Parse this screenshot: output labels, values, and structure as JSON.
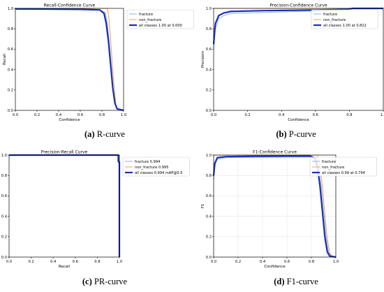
{
  "chart_data": [
    {
      "type": "line",
      "title": "Recall-Confidence Curve",
      "xlabel": "Confidence",
      "ylabel": "Recall",
      "xlim": [
        0,
        1
      ],
      "ylim": [
        0,
        1
      ],
      "xticks": [
        "0.0",
        "0.2",
        "0.4",
        "0.6",
        "0.8",
        "1.0"
      ],
      "yticks": [
        "0.0",
        "0.2",
        "0.4",
        "0.6",
        "0.8",
        "1.0"
      ],
      "grid": false,
      "legend_position": "top-right",
      "caption_letter": "(a)",
      "caption_text": "R-curve",
      "series": [
        {
          "name": "fracture",
          "color": "#8fb3e0",
          "width": 1,
          "points": [
            [
              0,
              0.99
            ],
            [
              0.3,
              0.99
            ],
            [
              0.6,
              0.988
            ],
            [
              0.78,
              0.985
            ],
            [
              0.83,
              0.96
            ],
            [
              0.85,
              0.85
            ],
            [
              0.87,
              0.65
            ],
            [
              0.89,
              0.4
            ],
            [
              0.91,
              0.15
            ],
            [
              0.93,
              0.03
            ],
            [
              0.95,
              0.01
            ],
            [
              1,
              0
            ]
          ]
        },
        {
          "name": "non_fracture",
          "color": "#f0a04b",
          "width": 1,
          "points": [
            [
              0,
              1
            ],
            [
              0.85,
              1
            ],
            [
              0.865,
              0.9
            ],
            [
              0.88,
              0.7
            ],
            [
              0.9,
              0.4
            ],
            [
              0.915,
              0.2
            ],
            [
              0.93,
              0.05
            ],
            [
              0.95,
              0.01
            ],
            [
              1,
              0
            ]
          ]
        },
        {
          "name": "all classes 1.00 at 0.000",
          "color": "#1a2fb8",
          "width": 2.2,
          "points": [
            [
              0,
              0.995
            ],
            [
              0.3,
              0.993
            ],
            [
              0.6,
              0.99
            ],
            [
              0.78,
              0.985
            ],
            [
              0.82,
              0.95
            ],
            [
              0.84,
              0.85
            ],
            [
              0.86,
              0.68
            ],
            [
              0.88,
              0.45
            ],
            [
              0.9,
              0.22
            ],
            [
              0.92,
              0.07
            ],
            [
              0.94,
              0.015
            ],
            [
              1,
              0
            ]
          ]
        }
      ]
    },
    {
      "type": "line",
      "title": "Precision-Confidence Curve",
      "xlabel": "Confidence",
      "ylabel": "Precision",
      "xlim": [
        0,
        1
      ],
      "ylim": [
        0,
        1
      ],
      "xticks": [
        "0.0",
        "0.2",
        "0.4",
        "0.6",
        "0.8",
        "1.0"
      ],
      "yticks": [
        "0.0",
        "0.2",
        "0.4",
        "0.6",
        "0.8",
        "1.0"
      ],
      "grid": false,
      "legend_position": "top-right",
      "caption_letter": "(b)",
      "caption_text": "P-curve",
      "series": [
        {
          "name": "fracture",
          "color": "#8fb3e0",
          "width": 1,
          "points": [
            [
              0,
              0.6
            ],
            [
              0.01,
              0.8
            ],
            [
              0.03,
              0.9
            ],
            [
              0.06,
              0.93
            ],
            [
              0.1,
              0.95
            ],
            [
              0.3,
              0.96
            ],
            [
              0.5,
              0.97
            ],
            [
              0.7,
              0.975
            ],
            [
              0.76,
              0.98
            ],
            [
              0.77,
              1
            ],
            [
              1,
              1
            ]
          ]
        },
        {
          "name": "non_fracture",
          "color": "#f0a04b",
          "width": 1,
          "points": [
            [
              0,
              1
            ],
            [
              1,
              1
            ]
          ]
        },
        {
          "name": "all classes 1.00 at 0.822",
          "color": "#1a2fb8",
          "width": 2.2,
          "points": [
            [
              0,
              0.65
            ],
            [
              0.01,
              0.85
            ],
            [
              0.03,
              0.93
            ],
            [
              0.06,
              0.955
            ],
            [
              0.1,
              0.97
            ],
            [
              0.3,
              0.978
            ],
            [
              0.5,
              0.982
            ],
            [
              0.7,
              0.987
            ],
            [
              0.78,
              0.99
            ],
            [
              0.82,
              1
            ],
            [
              1,
              1
            ]
          ]
        }
      ]
    },
    {
      "type": "line",
      "title": "Precision-Recall Curve",
      "xlabel": "Recall",
      "ylabel": "Precision",
      "xlim": [
        0,
        1
      ],
      "ylim": [
        0,
        1
      ],
      "xticks": [
        "0.0",
        "0.2",
        "0.4",
        "0.6",
        "0.8",
        "1.0"
      ],
      "yticks": [
        "0.0",
        "0.2",
        "0.4",
        "0.6",
        "0.8",
        "1.0"
      ],
      "grid": false,
      "legend_position": "top-right",
      "caption_letter": "(c)",
      "caption_text": "PR-curve",
      "series": [
        {
          "name": "fracture 0.994",
          "color": "#8fb3e0",
          "width": 1,
          "points": [
            [
              0,
              1
            ],
            [
              0.99,
              1
            ],
            [
              0.99,
              0.93
            ],
            [
              1,
              0.9
            ],
            [
              1,
              0
            ]
          ]
        },
        {
          "name": "non_fracture 0.995",
          "color": "#f0a04b",
          "width": 1,
          "points": [
            [
              0,
              1
            ],
            [
              0.995,
              1
            ],
            [
              0.995,
              0.95
            ],
            [
              1,
              0.95
            ],
            [
              1,
              0
            ]
          ]
        },
        {
          "name": "all classes 0.994 mAP@0.5",
          "color": "#1a2fb8",
          "width": 2.2,
          "points": [
            [
              0,
              1
            ],
            [
              0.99,
              1
            ],
            [
              0.99,
              0.94
            ],
            [
              1,
              0.93
            ],
            [
              1,
              0
            ]
          ]
        }
      ]
    },
    {
      "type": "line",
      "title": "F1-Confidence Curve",
      "xlabel": "Confidence",
      "ylabel": "F1",
      "xlim": [
        0,
        1
      ],
      "ylim": [
        0,
        1
      ],
      "xticks": [
        "0.0",
        "0.2",
        "0.4",
        "0.6",
        "0.8",
        "1.0"
      ],
      "yticks": [
        "0.0",
        "0.2",
        "0.4",
        "0.6",
        "0.8",
        "1.0"
      ],
      "grid": true,
      "legend_position": "top-right",
      "caption_letter": "(d)",
      "caption_text": "F1-curve",
      "series": [
        {
          "name": "fracture",
          "color": "#8fb3e0",
          "width": 1,
          "points": [
            [
              0,
              0.75
            ],
            [
              0.01,
              0.9
            ],
            [
              0.03,
              0.96
            ],
            [
              0.1,
              0.975
            ],
            [
              0.3,
              0.978
            ],
            [
              0.6,
              0.98
            ],
            [
              0.8,
              0.98
            ],
            [
              0.84,
              0.97
            ],
            [
              0.86,
              0.88
            ],
            [
              0.88,
              0.7
            ],
            [
              0.9,
              0.45
            ],
            [
              0.92,
              0.2
            ],
            [
              0.94,
              0.05
            ],
            [
              0.96,
              0.01
            ],
            [
              1,
              0
            ]
          ]
        },
        {
          "name": "non_fracture",
          "color": "#f0a04b",
          "width": 1,
          "points": [
            [
              0,
              1
            ],
            [
              0.85,
              1
            ],
            [
              0.87,
              0.9
            ],
            [
              0.89,
              0.7
            ],
            [
              0.91,
              0.42
            ],
            [
              0.93,
              0.18
            ],
            [
              0.95,
              0.04
            ],
            [
              0.97,
              0.01
            ],
            [
              1,
              0
            ]
          ]
        },
        {
          "name": "all classes 0.99 at 0.794",
          "color": "#1a2fb8",
          "width": 2.2,
          "points": [
            [
              0,
              0.8
            ],
            [
              0.01,
              0.92
            ],
            [
              0.03,
              0.975
            ],
            [
              0.1,
              0.985
            ],
            [
              0.3,
              0.988
            ],
            [
              0.6,
              0.99
            ],
            [
              0.79,
              0.99
            ],
            [
              0.83,
              0.97
            ],
            [
              0.85,
              0.88
            ],
            [
              0.87,
              0.7
            ],
            [
              0.89,
              0.45
            ],
            [
              0.91,
              0.2
            ],
            [
              0.93,
              0.05
            ],
            [
              0.95,
              0.01
            ],
            [
              1,
              0
            ]
          ]
        }
      ]
    }
  ]
}
